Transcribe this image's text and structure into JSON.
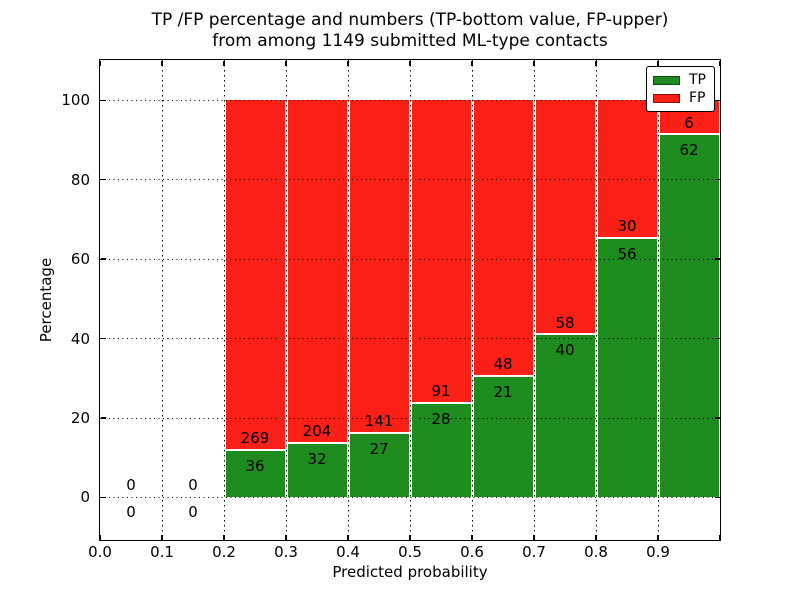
{
  "figure": {
    "title_line1": "TP /FP percentage and numbers (TP-bottom value, FP-upper)",
    "title_line2": "from among 1149 submitted ML-type contacts",
    "background": "#ffffff"
  },
  "chart_data": {
    "type": "bar",
    "stacked": true,
    "normalized_to_percent": true,
    "title": "TP /FP percentage and numbers (TP-bottom value, FP-upper) from among 1149 submitted ML-type contacts",
    "xlabel": "Predicted probability",
    "ylabel": "Percentage",
    "xlim": [
      0.0,
      1.0
    ],
    "ylim": [
      -10.7,
      110.1
    ],
    "grid": true,
    "legend_position": "upper right",
    "total_contacts": 1149,
    "bin_width": 0.1,
    "bins_start": [
      0.0,
      0.1,
      0.2,
      0.3,
      0.4,
      0.5,
      0.6,
      0.7,
      0.8,
      0.9
    ],
    "series": [
      {
        "name": "TP",
        "color": "#1e8b1e",
        "counts": [
          0,
          0,
          36,
          32,
          27,
          28,
          21,
          40,
          56,
          62
        ]
      },
      {
        "name": "FP",
        "color": "#fb2015",
        "counts": [
          0,
          0,
          269,
          204,
          141,
          91,
          48,
          58,
          30,
          6
        ]
      }
    ],
    "tp_percent_of_bin": [
      0,
      0,
      11.8,
      13.6,
      16.1,
      23.5,
      30.4,
      40.8,
      65.1,
      91.2
    ],
    "x_tick_values": [
      0.0,
      0.1,
      0.2,
      0.3,
      0.4,
      0.5,
      0.6,
      0.7,
      0.8,
      0.9
    ],
    "x_tick_labels": [
      "0.0",
      "0.1",
      "0.2",
      "0.3",
      "0.4",
      "0.5",
      "0.6",
      "0.7",
      "0.8",
      "0.9"
    ],
    "x_tick_marks": [
      0.0,
      0.1,
      0.2,
      0.3,
      0.4,
      0.5,
      0.6,
      0.7,
      0.8,
      0.9,
      1.0
    ],
    "y_tick_values": [
      0,
      20,
      40,
      60,
      80,
      100
    ],
    "y_tick_labels": [
      "0",
      "20",
      "40",
      "60",
      "80",
      "100"
    ]
  },
  "legend": {
    "items": [
      {
        "label": "TP",
        "color": "#1e8b1e"
      },
      {
        "label": "FP",
        "color": "#fb2015"
      }
    ]
  }
}
